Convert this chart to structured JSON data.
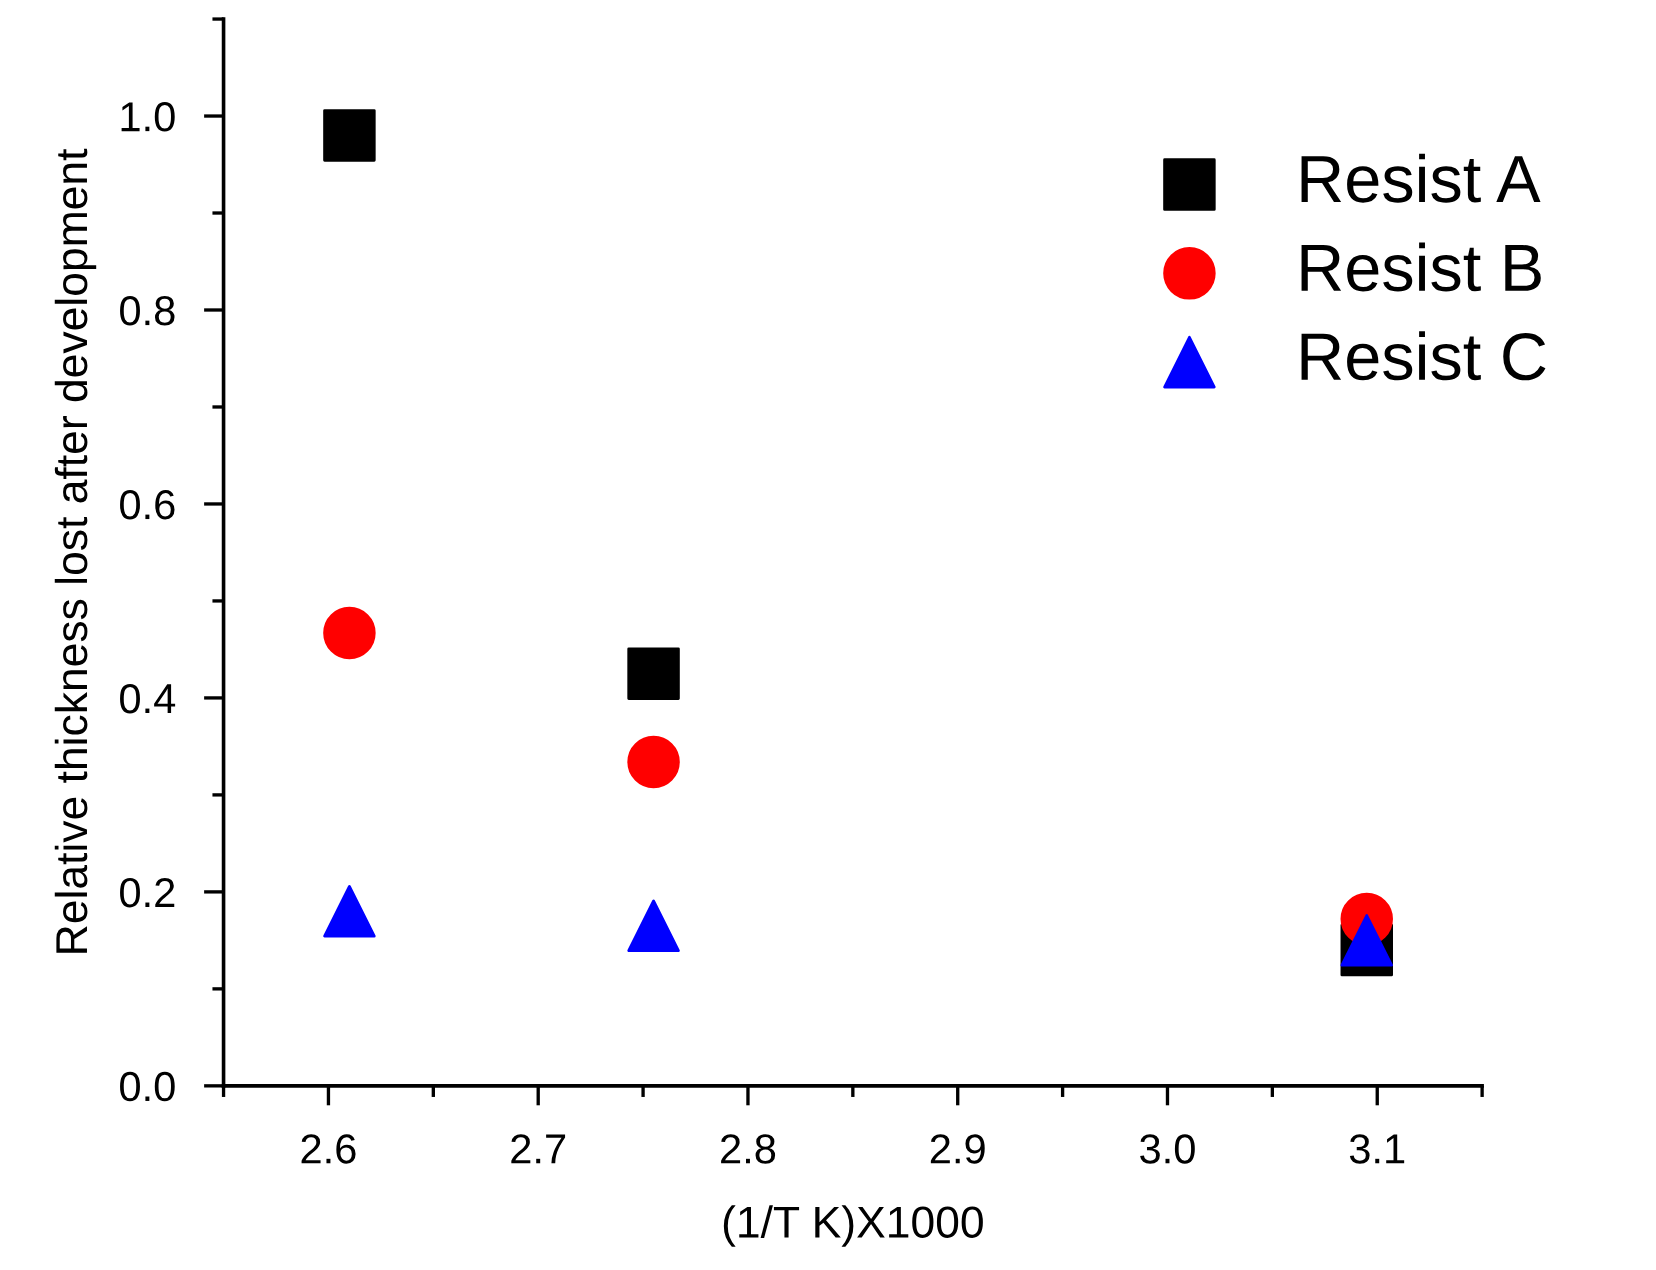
{
  "chart_data": {
    "type": "scatter",
    "xlabel": "(1/T K)X1000",
    "ylabel": "Relative thickness lost after development",
    "xlim": [
      2.55,
      3.15
    ],
    "xticks": [
      {
        "value": 2.6,
        "label": "2.6"
      },
      {
        "value": 2.7,
        "label": "2.7"
      },
      {
        "value": 2.8,
        "label": "2.8"
      },
      {
        "value": 2.9,
        "label": "2.9"
      },
      {
        "value": 3.0,
        "label": "3.0"
      },
      {
        "value": 3.1,
        "label": "3.1"
      }
    ],
    "ylim": [
      0,
      1.1
    ],
    "yticks": [
      {
        "value": 0,
        "label": "0.0"
      },
      {
        "value": 0.2,
        "label": "0.2"
      },
      {
        "value": 0.4,
        "label": "0.4"
      },
      {
        "value": 0.6,
        "label": "0.6"
      },
      {
        "value": 0.8,
        "label": "0.8"
      },
      {
        "value": 1.0,
        "label": "1.0"
      }
    ],
    "grid": false,
    "legend": "top right",
    "series": [
      {
        "name": "Resist A",
        "color": "#000000",
        "marker": "square",
        "x": [
          2.61,
          2.755,
          3.095
        ],
        "values": [
          0.98,
          0.425,
          0.14
        ]
      },
      {
        "name": "Resist B",
        "color": "#ff0000",
        "marker": "circle",
        "x": [
          2.61,
          2.755,
          3.095
        ],
        "values": [
          0.467,
          0.334,
          0.172
        ]
      },
      {
        "name": "Resist C",
        "color": "#0000ff",
        "marker": "triangle",
        "x": [
          2.61,
          2.755,
          3.095
        ],
        "values": [
          0.18,
          0.165,
          0.15
        ]
      }
    ]
  }
}
